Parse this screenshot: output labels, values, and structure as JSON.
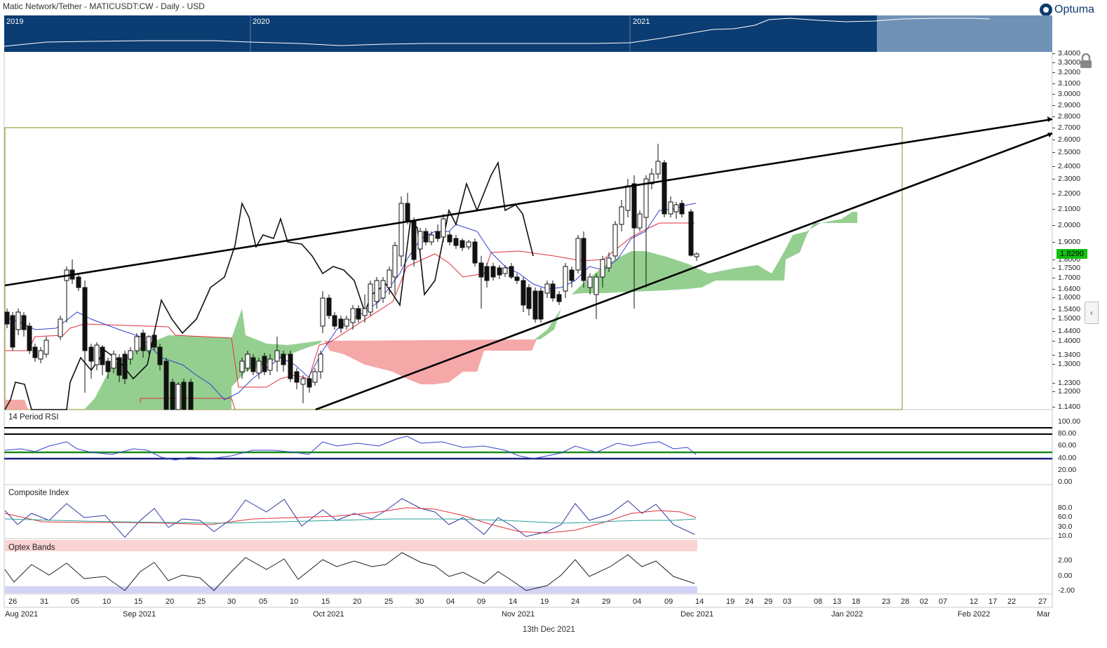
{
  "header": {
    "title": "Matic Network/Tether - MATICUSDT:CW - Daily - USD",
    "brand": "Optuma"
  },
  "navigator": {
    "years": [
      "2019",
      "2020",
      "2021"
    ]
  },
  "price_axis": {
    "ticks": [
      "3.4000",
      "3.3000",
      "3.2000",
      "3.1000",
      "3.0000",
      "2.9000",
      "2.8000",
      "2.7000",
      "2.6000",
      "2.5000",
      "2.4000",
      "2.3000",
      "2.2000",
      "2.1000",
      "2.0000",
      "1.9000",
      "1.8000",
      "1.7500",
      "1.7000",
      "1.6400",
      "1.6000",
      "1.5400",
      "1.5000",
      "1.4400",
      "1.4000",
      "1.3400",
      "1.3000",
      "1.2300",
      "1.2000",
      "1.1400"
    ],
    "last_price": "1.8290"
  },
  "rsi_pane": {
    "label": "14 Period RSI",
    "ticks": [
      "100.00",
      "80.00",
      "60.00",
      "40.00",
      "20.00",
      "0.00"
    ]
  },
  "composite_pane": {
    "label": "Composite Index",
    "ticks": [
      "80.0",
      "60.0",
      "30.0",
      "10.0"
    ]
  },
  "optex_pane": {
    "label": "Optex Bands",
    "ticks": [
      "2.00",
      "0.00",
      "-2.00"
    ]
  },
  "x_axis": {
    "days": [
      "26",
      "31",
      "05",
      "10",
      "15",
      "20",
      "25",
      "30",
      "05",
      "10",
      "15",
      "20",
      "25",
      "30",
      "04",
      "09",
      "14",
      "19",
      "24",
      "29",
      "04",
      "09",
      "14",
      "19",
      "24",
      "29",
      "03",
      "08",
      "13",
      "18",
      "23",
      "28",
      "02",
      "07",
      "12",
      "17",
      "22",
      "27"
    ],
    "months": [
      "Aug 2021",
      "Sep 2021",
      "Oct 2021",
      "Nov 2021",
      "Dec 2021",
      "Jan 2022",
      "Feb 2022",
      "Mar"
    ]
  },
  "footer": {
    "cursor_date": "13th Dec 2021"
  },
  "colors": {
    "bull_cloud": "#8fcc8a",
    "bear_cloud": "#f4a3a3",
    "tenkan": "#3340d0",
    "kijun": "#e0303a",
    "navigator": "#0b3d73",
    "badge": "#11c011"
  },
  "chart_data": [
    {
      "type": "candlestick",
      "title": "Matic Network/Tether - MATICUSDT:CW - Daily - USD",
      "ylim": [
        1.14,
        3.4
      ],
      "x_range": [
        "2021-08-24",
        "2022-03-01"
      ],
      "last_close": 1.829,
      "overlays": [
        "Ichimoku cloud",
        "Tenkan-sen",
        "Kijun-sen",
        "Chikou span",
        "Rising wedge trendlines"
      ],
      "candles_ohlc_approx": [
        {
          "date": "2021-12-09",
          "open": 2.42,
          "high": 2.43,
          "low": 2.05,
          "close": 2.1
        },
        {
          "date": "2021-12-10",
          "open": 2.1,
          "high": 2.15,
          "low": 2.05,
          "close": 2.12
        },
        {
          "date": "2021-12-11",
          "open": 2.12,
          "high": 2.13,
          "low": 2.06,
          "close": 2.08
        },
        {
          "date": "2021-12-12",
          "open": 2.08,
          "high": 2.12,
          "low": 2.02,
          "close": 2.06
        },
        {
          "date": "2021-12-13",
          "open": 2.08,
          "high": 2.09,
          "low": 1.82,
          "close": 1.84
        },
        {
          "date": "2021-12-14",
          "open": 1.84,
          "high": 1.85,
          "low": 1.8,
          "close": 1.829
        }
      ]
    },
    {
      "type": "line",
      "title": "14 Period RSI",
      "ylim": [
        0,
        100
      ],
      "reference_lines": [
        90,
        80,
        50,
        40
      ],
      "last_value": 45
    },
    {
      "type": "line",
      "title": "Composite Index",
      "ylim": [
        0,
        100
      ],
      "series": [
        {
          "last": 13
        },
        {
          "last": 55
        },
        {
          "last": 62
        }
      ]
    },
    {
      "type": "area",
      "title": "Optex Bands",
      "ylim": [
        -2.2,
        3.0
      ],
      "last_value": -0.8,
      "bands": {
        "upper": 3.3,
        "lower": -1.8
      }
    }
  ]
}
